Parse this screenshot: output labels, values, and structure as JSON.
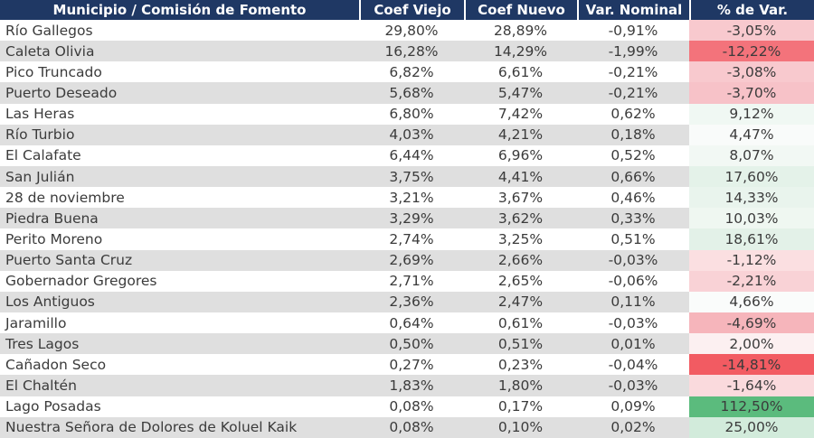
{
  "header": {
    "columns": [
      "Municipio / Comisión de Fomento",
      "Coef Viejo",
      "Coef Nuevo",
      "Var. Nominal",
      "% de Var."
    ]
  },
  "colors": {
    "header_bg": "#1F3864",
    "header_text": "#FFFFFF",
    "row_bg": "#FFFFFF",
    "row_alt_bg": "#DFDFDF",
    "body_text": "#3B3B3B",
    "scale_min_red": "#F8696B",
    "scale_mid_white": "#FCFCFF",
    "scale_max_green": "#5BBB7D"
  },
  "chart_data": {
    "type": "table",
    "title": "Municipio / Comisión de Fomento — Coeficientes",
    "columns": [
      "Municipio / Comisión de Fomento",
      "Coef Viejo",
      "Coef Nuevo",
      "Var. Nominal",
      "% de Var."
    ],
    "rows": [
      {
        "municipio": "Río Gallegos",
        "coef_viejo": "29,80%",
        "coef_nuevo": "28,89%",
        "var_nominal": "-0,91%",
        "pct_var": "-3,05%",
        "pct_color": "#F8C9CE"
      },
      {
        "municipio": "Caleta Olivia",
        "coef_viejo": "16,28%",
        "coef_nuevo": "14,29%",
        "var_nominal": "-1,99%",
        "pct_var": "-12,22%",
        "pct_color": "#F3737B"
      },
      {
        "municipio": "Pico Truncado",
        "coef_viejo": "6,82%",
        "coef_nuevo": "6,61%",
        "var_nominal": "-0,21%",
        "pct_var": "-3,08%",
        "pct_color": "#F8C9CE"
      },
      {
        "municipio": "Puerto Deseado",
        "coef_viejo": "5,68%",
        "coef_nuevo": "5,47%",
        "var_nominal": "-0,21%",
        "pct_var": "-3,70%",
        "pct_color": "#F7C2C8"
      },
      {
        "municipio": "Las Heras",
        "coef_viejo": "6,80%",
        "coef_nuevo": "7,42%",
        "var_nominal": "0,62%",
        "pct_var": "9,12%",
        "pct_color": "#F0F8F3"
      },
      {
        "municipio": "Río Turbio",
        "coef_viejo": "4,03%",
        "coef_nuevo": "4,21%",
        "var_nominal": "0,18%",
        "pct_var": "4,47%",
        "pct_color": "#F9FBFA"
      },
      {
        "municipio": "El Calafate",
        "coef_viejo": "6,44%",
        "coef_nuevo": "6,96%",
        "var_nominal": "0,52%",
        "pct_var": "8,07%",
        "pct_color": "#F2F8F4"
      },
      {
        "municipio": "San Julián",
        "coef_viejo": "3,75%",
        "coef_nuevo": "4,41%",
        "var_nominal": "0,66%",
        "pct_var": "17,60%",
        "pct_color": "#E4F2E9"
      },
      {
        "municipio": "28 de noviembre",
        "coef_viejo": "3,21%",
        "coef_nuevo": "3,67%",
        "var_nominal": "0,46%",
        "pct_var": "14,33%",
        "pct_color": "#E9F4ED"
      },
      {
        "municipio": "Piedra Buena",
        "coef_viejo": "3,29%",
        "coef_nuevo": "3,62%",
        "var_nominal": "0,33%",
        "pct_var": "10,03%",
        "pct_color": "#EFF7F1"
      },
      {
        "municipio": "Perito Moreno",
        "coef_viejo": "2,74%",
        "coef_nuevo": "3,25%",
        "var_nominal": "0,51%",
        "pct_var": "18,61%",
        "pct_color": "#E3F1E8"
      },
      {
        "municipio": "Puerto Santa Cruz",
        "coef_viejo": "2,69%",
        "coef_nuevo": "2,66%",
        "var_nominal": "-0,03%",
        "pct_var": "-1,12%",
        "pct_color": "#FBDFE1"
      },
      {
        "municipio": "Gobernador Gregores",
        "coef_viejo": "2,71%",
        "coef_nuevo": "2,65%",
        "var_nominal": "-0,06%",
        "pct_var": "-2,21%",
        "pct_color": "#F9D2D6"
      },
      {
        "municipio": "Los Antiguos",
        "coef_viejo": "2,36%",
        "coef_nuevo": "2,47%",
        "var_nominal": "0,11%",
        "pct_var": "4,66%",
        "pct_color": "#FAFCFB"
      },
      {
        "municipio": "Jaramillo",
        "coef_viejo": "0,64%",
        "coef_nuevo": "0,61%",
        "var_nominal": "-0,03%",
        "pct_var": "-4,69%",
        "pct_color": "#F6B5BB"
      },
      {
        "municipio": "Tres Lagos",
        "coef_viejo": "0,50%",
        "coef_nuevo": "0,51%",
        "var_nominal": "0,01%",
        "pct_var": "2,00%",
        "pct_color": "#FCF0F1"
      },
      {
        "municipio": "Cañadon Seco",
        "coef_viejo": "0,27%",
        "coef_nuevo": "0,23%",
        "var_nominal": "-0,04%",
        "pct_var": "-14,81%",
        "pct_color": "#F25B62"
      },
      {
        "municipio": "El Chaltén",
        "coef_viejo": "1,83%",
        "coef_nuevo": "1,80%",
        "var_nominal": "-0,03%",
        "pct_var": "-1,64%",
        "pct_color": "#FADADD"
      },
      {
        "municipio": "Lago Posadas",
        "coef_viejo": "0,08%",
        "coef_nuevo": "0,17%",
        "var_nominal": "0,09%",
        "pct_var": "112,50%",
        "pct_color": "#5BBB7D"
      },
      {
        "municipio": "Nuestra Señora de Dolores de Koluel Kaik",
        "coef_viejo": "0,08%",
        "coef_nuevo": "0,10%",
        "var_nominal": "0,02%",
        "pct_var": "25,00%",
        "pct_color": "#D2EBDB"
      }
    ]
  }
}
